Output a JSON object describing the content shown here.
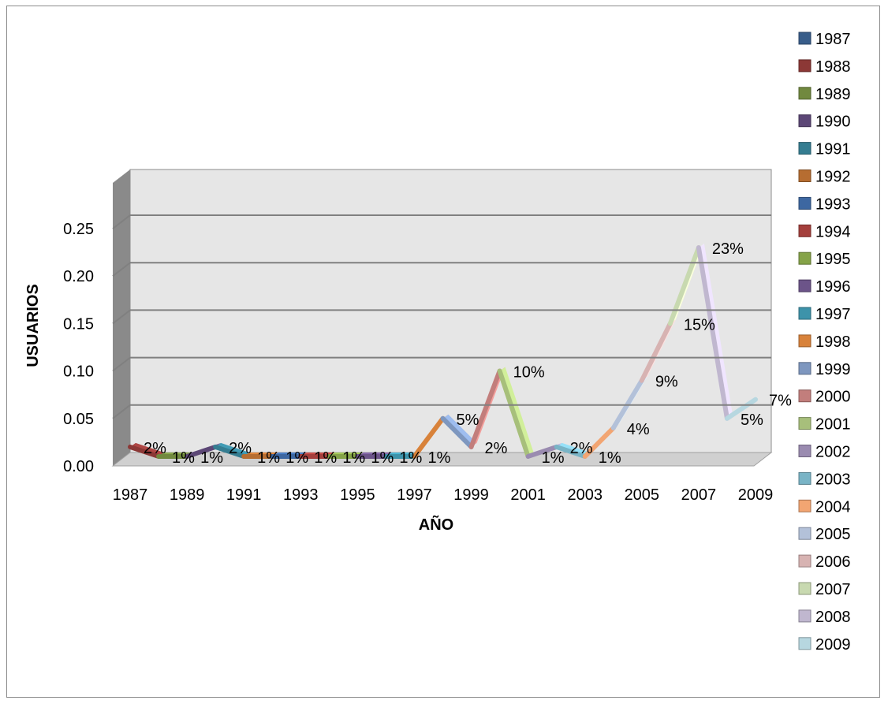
{
  "chart_data": {
    "type": "line",
    "title": "",
    "xlabel": "AÑO",
    "ylabel": "USUARIOS",
    "x": [
      "1987",
      "1988",
      "1989",
      "1990",
      "1991",
      "1992",
      "1993",
      "1994",
      "1995",
      "1996",
      "1997",
      "1998",
      "1999",
      "2000",
      "2001",
      "2002",
      "2003",
      "2004",
      "2005",
      "2006",
      "2007",
      "2008",
      "2009"
    ],
    "values": [
      0.02,
      0.01,
      0.01,
      0.02,
      0.01,
      0.01,
      0.01,
      0.01,
      0.01,
      0.01,
      0.01,
      0.05,
      0.02,
      0.1,
      0.01,
      0.02,
      0.01,
      0.04,
      0.09,
      0.15,
      0.23,
      0.05,
      0.07
    ],
    "data_labels": [
      "2%",
      "1%",
      "1%",
      "2%",
      "1%",
      "1%",
      "1%",
      "1%",
      "1%",
      "1%",
      "1%",
      "5%",
      "2%",
      "10%",
      "1%",
      "2%",
      "1%",
      "4%",
      "9%",
      "15%",
      "23%",
      "5%",
      "7%"
    ],
    "x_tick_labels": [
      "1987",
      "1989",
      "1991",
      "1993",
      "1995",
      "1997",
      "1999",
      "2001",
      "2003",
      "2005",
      "2007",
      "2009"
    ],
    "y_tick_labels": [
      "0.00",
      "0.05",
      "0.10",
      "0.15",
      "0.20",
      "0.25"
    ],
    "ylim": [
      0,
      0.25
    ],
    "grid": true,
    "legend": {
      "position": "right",
      "entries": [
        "1987",
        "1988",
        "1989",
        "1990",
        "1991",
        "1992",
        "1993",
        "1994",
        "1995",
        "1996",
        "1997",
        "1998",
        "1999",
        "2000",
        "2001",
        "2002",
        "2003",
        "2004",
        "2005",
        "2006",
        "2007",
        "2008",
        "2009"
      ]
    },
    "colors": [
      "#385d8a",
      "#8c3836",
      "#71893f",
      "#5c4776",
      "#357d91",
      "#b66d31",
      "#3d67a1",
      "#a43f3c",
      "#85a348",
      "#6c5489",
      "#3d93aa",
      "#d8823a",
      "#7e97bf",
      "#c27e7c",
      "#a7bf7b",
      "#9a8bb0",
      "#79b4c6",
      "#f2a572",
      "#b3c1d9",
      "#d7b3b2",
      "#c8d9b0",
      "#c0b7cf",
      "#b7d7e0"
    ]
  }
}
